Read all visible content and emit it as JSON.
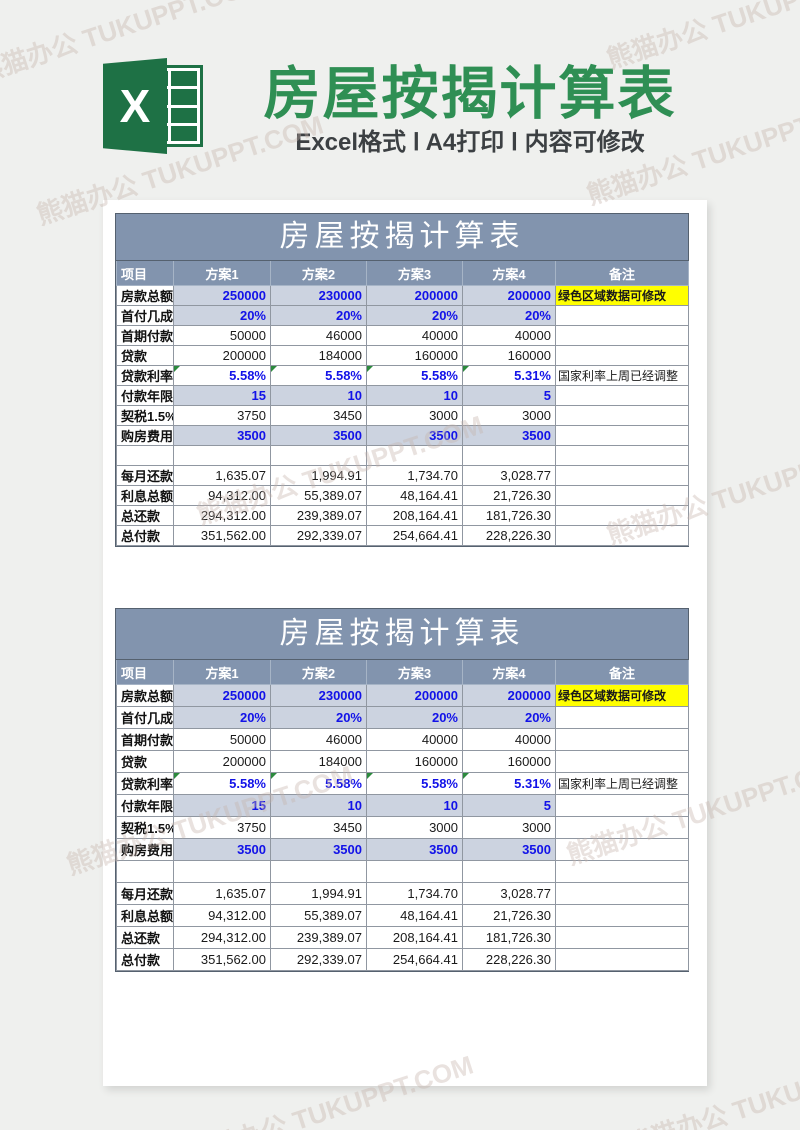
{
  "watermark": {
    "text": "熊猫办公 TUKUPPT.COM"
  },
  "header": {
    "title": "房屋按揭计算表",
    "subtitle": "Excel格式 Ⅰ A4打印 Ⅰ 内容可修改",
    "icon_letter": "X"
  },
  "colors": {
    "excel_green": "#1e7145",
    "title_green": "#2f8f54",
    "table_header_bg": "#8294ae",
    "row_shade": "#ccd3e0",
    "value_blue": "#1212e8",
    "highlight_yellow": "#ffff00",
    "page_bg": "#eff0ee"
  },
  "table": {
    "title": "房屋按揭计算表",
    "columns": [
      "项目",
      "方案1",
      "方案2",
      "方案3",
      "方案4",
      "备注"
    ],
    "rows": [
      {
        "label": "房款总额",
        "values": [
          "250000",
          "230000",
          "200000",
          "200000"
        ],
        "note": "绿色区域数据可修改",
        "note_style": "yellow",
        "style": "shaded"
      },
      {
        "label": "首付几成",
        "values": [
          "20%",
          "20%",
          "20%",
          "20%"
        ],
        "note": "",
        "note_style": "",
        "style": "shaded"
      },
      {
        "label": "首期付款",
        "values": [
          "50000",
          "46000",
          "40000",
          "40000"
        ],
        "note": "",
        "note_style": "",
        "style": "plain"
      },
      {
        "label": "贷款",
        "values": [
          "200000",
          "184000",
          "160000",
          "160000"
        ],
        "note": "",
        "note_style": "",
        "style": "plain"
      },
      {
        "label": "贷款利率",
        "values": [
          "5.58%",
          "5.58%",
          "5.58%",
          "5.31%"
        ],
        "note": "国家利率上周已经调整",
        "note_style": "",
        "style": "rate"
      },
      {
        "label": "付款年限",
        "values": [
          "15",
          "10",
          "10",
          "5"
        ],
        "note": "",
        "note_style": "",
        "style": "shaded"
      },
      {
        "label": "契税1.5%",
        "values": [
          "3750",
          "3450",
          "3000",
          "3000"
        ],
        "note": "",
        "note_style": "",
        "style": "plain"
      },
      {
        "label": "购房费用",
        "values": [
          "3500",
          "3500",
          "3500",
          "3500"
        ],
        "note": "",
        "note_style": "",
        "style": "shaded"
      },
      {
        "label": "",
        "values": [
          "",
          "",
          "",
          ""
        ],
        "note": "",
        "note_style": "",
        "style": "empty"
      },
      {
        "label": "每月还款",
        "values": [
          "1,635.07",
          "1,994.91",
          "1,734.70",
          "3,028.77"
        ],
        "note": "",
        "note_style": "",
        "style": "plain"
      },
      {
        "label": "利息总额",
        "values": [
          "94,312.00",
          "55,389.07",
          "48,164.41",
          "21,726.30"
        ],
        "note": "",
        "note_style": "",
        "style": "plain"
      },
      {
        "label": "总还款",
        "values": [
          "294,312.00",
          "239,389.07",
          "208,164.41",
          "181,726.30"
        ],
        "note": "",
        "note_style": "",
        "style": "plain"
      },
      {
        "label": "总付款",
        "values": [
          "351,562.00",
          "292,339.07",
          "254,664.41",
          "228,226.30"
        ],
        "note": "",
        "note_style": "",
        "style": "plain"
      }
    ]
  }
}
